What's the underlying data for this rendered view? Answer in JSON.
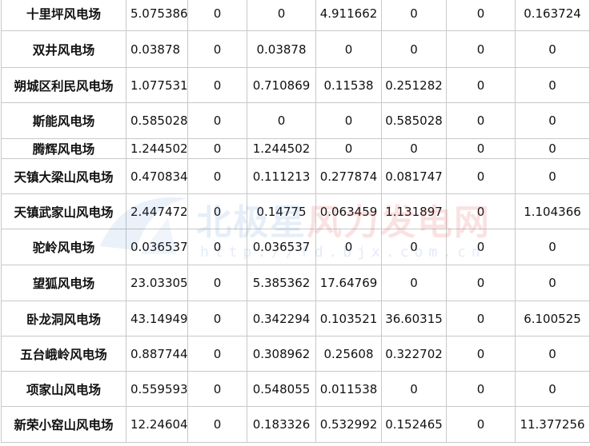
{
  "rows": [
    {
      "name": "十里坪风电场",
      "v": [
        "5.075386",
        "0",
        "0",
        "4.911662",
        "0",
        "0",
        "0.163724"
      ]
    },
    {
      "name": "双井风电场",
      "v": [
        "0.03878",
        "0",
        "0.03878",
        "0",
        "0",
        "0",
        "0"
      ]
    },
    {
      "name": "朔城区利民风电场",
      "v": [
        "1.077531",
        "0",
        "0.710869",
        "0.11538",
        "0.251282",
        "0",
        "0"
      ]
    },
    {
      "name": "斯能风电场",
      "v": [
        "0.585028",
        "0",
        "0",
        "0",
        "0.585028",
        "0",
        "0"
      ]
    },
    {
      "name": "腾辉风电场",
      "v": [
        "1.244502",
        "0",
        "1.244502",
        "0",
        "0",
        "0",
        "0"
      ]
    },
    {
      "name": "天镇大梁山风电场",
      "v": [
        "0.470834",
        "0",
        "0.111213",
        "0.277874",
        "0.081747",
        "0",
        "0"
      ]
    },
    {
      "name": "天镇武家山风电场",
      "v": [
        "2.447472",
        "0",
        "0.14775",
        "0.063459",
        "1.131897",
        "0",
        "1.104366"
      ]
    },
    {
      "name": "驼岭风电场",
      "v": [
        "0.036537",
        "0",
        "0.036537",
        "0",
        "0",
        "0",
        "0"
      ]
    },
    {
      "name": "望狐风电场",
      "v": [
        "23.03305",
        "0",
        "5.385362",
        "17.64769",
        "0",
        "0",
        "0"
      ]
    },
    {
      "name": "卧龙洞风电场",
      "v": [
        "43.14949",
        "0",
        "0.342294",
        "0.103521",
        "36.60315",
        "0",
        "6.100525"
      ]
    },
    {
      "name": "五台峨岭风电场",
      "v": [
        "0.887744",
        "0",
        "0.308962",
        "0.25608",
        "0.322702",
        "0",
        "0"
      ]
    },
    {
      "name": "项家山风电场",
      "v": [
        "0.559593",
        "0",
        "0.548055",
        "0.011538",
        "0",
        "0",
        "0"
      ]
    },
    {
      "name": "新荣小窑山风电场",
      "v": [
        "12.24604",
        "0",
        "0.183326",
        "0.532992",
        "0.152465",
        "0",
        "11.377256"
      ]
    }
  ],
  "watermark": {
    "text_blue": "北极星",
    "text_red": "风力发电网",
    "url": "http://fd.bjx.com.cn"
  }
}
